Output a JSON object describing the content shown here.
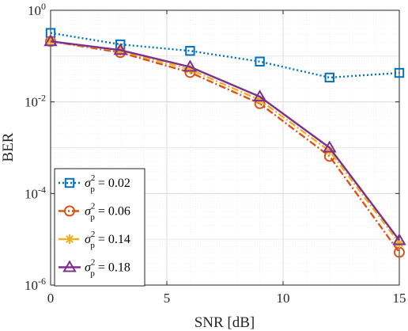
{
  "chart_data": {
    "type": "line",
    "xlabel": "SNR [dB]",
    "ylabel": "BER",
    "xlim": [
      0,
      15
    ],
    "ylim": [
      1e-06,
      1
    ],
    "yscale": "log",
    "grid": true,
    "minor_grid": true,
    "legend_position": "bottom-left",
    "x_ticks": [
      0,
      5,
      10,
      15
    ],
    "x_tick_labels": [
      "0",
      "5",
      "10",
      "15"
    ],
    "y_ticks": [
      1e-06,
      0.0001,
      0.01,
      1
    ],
    "y_tick_labels": [
      {
        "base": "10",
        "exp": "-6"
      },
      {
        "base": "10",
        "exp": "-4"
      },
      {
        "base": "10",
        "exp": "-2"
      },
      {
        "base": "10",
        "exp": "0"
      }
    ],
    "x": [
      0,
      3,
      6,
      9,
      12,
      15
    ],
    "series": [
      {
        "label": "σ",
        "sup": "2",
        "sub": "p",
        "value_text": " = 0.02",
        "color": "#0072BD",
        "marker": "square",
        "dash": "2,3",
        "values": [
          0.32,
          0.18,
          0.13,
          0.076,
          0.034,
          0.043
        ]
      },
      {
        "label": "σ",
        "sup": "2",
        "sub": "p",
        "value_text": " = 0.06",
        "color": "#D95319",
        "marker": "circle",
        "dash": "9,3,2,3",
        "values": [
          0.21,
          0.12,
          0.044,
          0.0092,
          0.00065,
          5.2e-06
        ]
      },
      {
        "label": "σ",
        "sup": "2",
        "sub": "p",
        "value_text": " = 0.14",
        "color": "#EDB120",
        "marker": "asterisk",
        "dash": "9,3,2,3",
        "values": [
          0.21,
          0.13,
          0.051,
          0.011,
          0.00085,
          8.2e-06
        ]
      },
      {
        "label": "σ",
        "sup": "2",
        "sub": "p",
        "value_text": " = 0.18",
        "color": "#7E2F8E",
        "marker": "triangle",
        "dash": "",
        "values": [
          0.21,
          0.135,
          0.058,
          0.013,
          0.001,
          9.5e-06
        ]
      }
    ]
  }
}
